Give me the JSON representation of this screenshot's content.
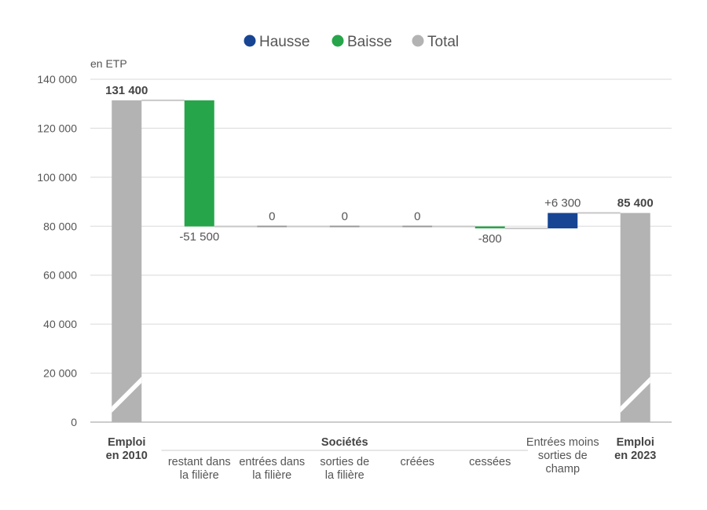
{
  "chart_data": {
    "type": "waterfall",
    "unit_label": "en ETP",
    "legend": [
      {
        "name": "Hausse",
        "color": "#174593"
      },
      {
        "name": "Baisse",
        "color": "#27a54a"
      },
      {
        "name": "Total",
        "color": "#b3b3b3"
      }
    ],
    "legend_position": "top-center",
    "ylim": [
      0,
      140000
    ],
    "yticks": [
      0,
      20000,
      40000,
      60000,
      80000,
      100000,
      120000,
      140000
    ],
    "ytick_labels": [
      "0",
      "20 000",
      "40 000",
      "60 000",
      "80 000",
      "100 000",
      "120 000",
      "140 000"
    ],
    "grid": true,
    "group_label": "Sociétés",
    "bars": [
      {
        "label": [
          "Emploi",
          "en 2010"
        ],
        "bold": true,
        "kind": "total",
        "value": 131400,
        "data_label": "131 400"
      },
      {
        "label": [
          "restant dans",
          "la filière"
        ],
        "kind": "change",
        "value": -51500,
        "data_label": "-51 500",
        "group": true
      },
      {
        "label": [
          "entrées dans",
          "la filière"
        ],
        "kind": "change",
        "value": 0,
        "data_label": "0",
        "group": true
      },
      {
        "label": [
          "sorties de",
          "la filière"
        ],
        "kind": "change",
        "value": 0,
        "data_label": "0",
        "group": true
      },
      {
        "label": [
          "créées"
        ],
        "kind": "change",
        "value": 0,
        "data_label": "0",
        "group": true
      },
      {
        "label": [
          "cessées"
        ],
        "kind": "change",
        "value": -800,
        "data_label": "-800",
        "group": true
      },
      {
        "label": [
          "Entrées moins",
          "sorties de",
          "champ"
        ],
        "kind": "change",
        "value": 6300,
        "data_label": "+6 300"
      },
      {
        "label": [
          "Emploi",
          "en 2023"
        ],
        "bold": true,
        "kind": "total",
        "value": 85400,
        "data_label": "85 400"
      }
    ]
  }
}
